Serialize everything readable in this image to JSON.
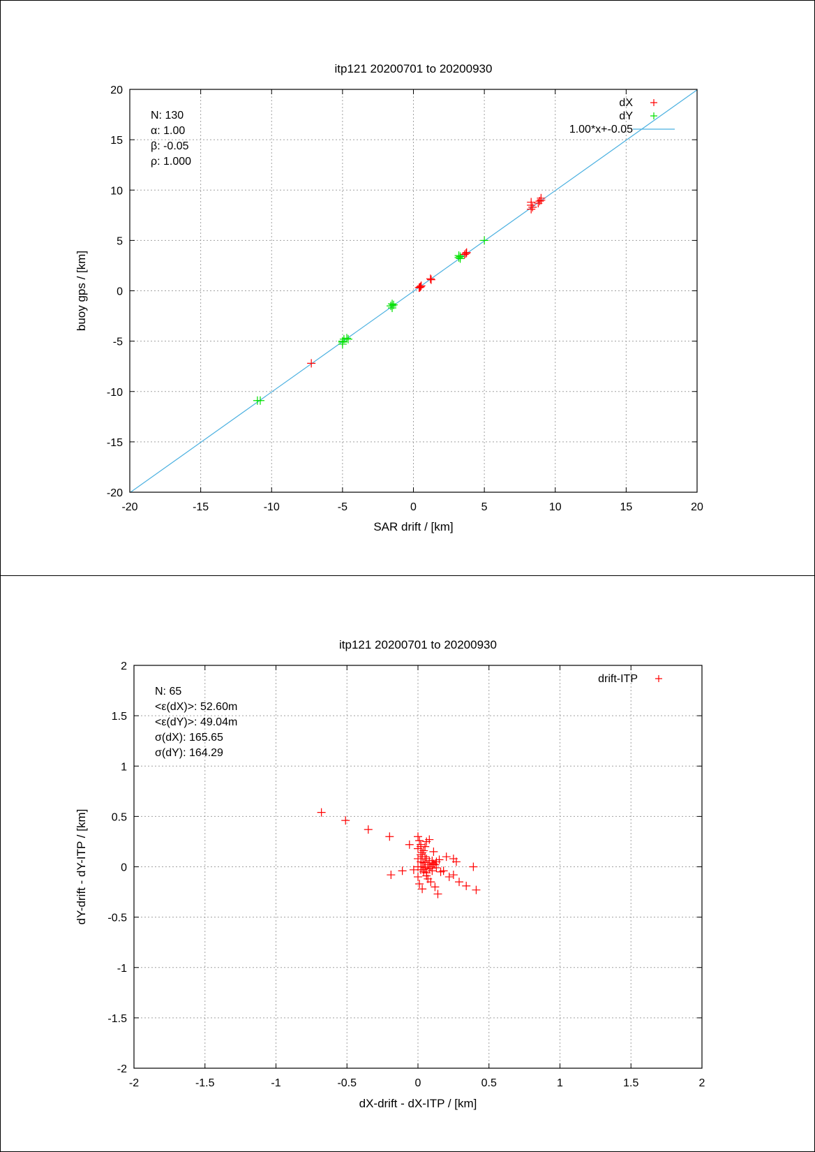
{
  "chart_data": [
    {
      "type": "scatter",
      "title": "itp121 20200701 to 20200930",
      "xlabel": "SAR drift / [km]",
      "ylabel": "buoy gps / [km]",
      "xlim": [
        -20,
        20
      ],
      "ylim": [
        -20,
        20
      ],
      "xticks": [
        -20,
        -15,
        -10,
        -5,
        0,
        5,
        10,
        15,
        20
      ],
      "yticks": [
        -20,
        -15,
        -10,
        -5,
        0,
        5,
        10,
        15,
        20
      ],
      "grid": true,
      "legend_position": "top-right",
      "stats": [
        "N: 130",
        "α: 1.00",
        "β: -0.05",
        "ρ: 1.000"
      ],
      "series": [
        {
          "name": "dX",
          "marker": "plus",
          "color": "#ff0000",
          "points": [
            [
              -7.2,
              -7.2
            ],
            [
              0.5,
              0.4
            ],
            [
              0.4,
              0.3
            ],
            [
              0.55,
              0.5
            ],
            [
              0.45,
              0.35
            ],
            [
              1.2,
              1.2
            ],
            [
              1.25,
              1.1
            ],
            [
              3.7,
              3.7
            ],
            [
              3.6,
              3.6
            ],
            [
              3.75,
              3.8
            ],
            [
              8.3,
              8.1
            ],
            [
              8.3,
              8.5
            ],
            [
              8.3,
              8.8
            ],
            [
              8.4,
              8.3
            ],
            [
              8.9,
              8.9
            ],
            [
              9.0,
              9.2
            ],
            [
              8.8,
              8.7
            ],
            [
              9.0,
              9.0
            ]
          ]
        },
        {
          "name": "dY",
          "marker": "plus",
          "color": "#00e000",
          "points": [
            [
              -11.0,
              -10.9
            ],
            [
              -10.8,
              -10.9
            ],
            [
              -5.0,
              -5.3
            ],
            [
              -5.0,
              -5.0
            ],
            [
              -4.9,
              -4.8
            ],
            [
              -4.7,
              -4.7
            ],
            [
              -4.6,
              -4.8
            ],
            [
              -5.0,
              -5.1
            ],
            [
              -1.5,
              -1.3
            ],
            [
              -1.5,
              -1.5
            ],
            [
              -1.5,
              -1.7
            ],
            [
              -1.4,
              -1.4
            ],
            [
              -1.6,
              -1.5
            ],
            [
              3.2,
              3.3
            ],
            [
              3.2,
              3.5
            ],
            [
              3.3,
              3.4
            ],
            [
              3.3,
              3.2
            ],
            [
              5.0,
              5.0
            ]
          ]
        }
      ],
      "fit": {
        "label": "1.00*x+-0.05",
        "slope": 1.0,
        "intercept": -0.05,
        "color": "#4ab0e0"
      }
    },
    {
      "type": "scatter",
      "title": "itp121 20200701 to 20200930",
      "xlabel": "dX-drift - dX-ITP / [km]",
      "ylabel": "dY-drift - dY-ITP / [km]",
      "xlim": [
        -2,
        2
      ],
      "ylim": [
        -2,
        2
      ],
      "xticks": [
        -2,
        -1.5,
        -1,
        -0.5,
        0,
        0.5,
        1,
        1.5,
        2
      ],
      "yticks": [
        -2,
        -1.5,
        -1,
        -0.5,
        0,
        0.5,
        1,
        1.5,
        2
      ],
      "grid": true,
      "legend_position": "top-right",
      "stats": [
        "N: 65",
        "<ε(dX)>:  52.60m",
        "<ε(dY)>: 49.04m",
        "σ(dX):  165.65",
        "σ(dY):  164.29"
      ],
      "series": [
        {
          "name": "drift-ITP",
          "marker": "plus",
          "color": "#ff0000",
          "points": [
            [
              -0.68,
              0.54
            ],
            [
              -0.51,
              0.46
            ],
            [
              -0.35,
              0.37
            ],
            [
              -0.2,
              0.3
            ],
            [
              -0.19,
              -0.08
            ],
            [
              -0.11,
              -0.04
            ],
            [
              -0.06,
              0.22
            ],
            [
              -0.03,
              -0.03
            ],
            [
              0.0,
              0.3
            ],
            [
              0.0,
              0.18
            ],
            [
              0.0,
              0.0
            ],
            [
              0.0,
              -0.1
            ],
            [
              0.01,
              -0.17
            ],
            [
              0.01,
              0.26
            ],
            [
              0.02,
              0.2
            ],
            [
              0.02,
              0.12
            ],
            [
              0.02,
              0.05
            ],
            [
              0.02,
              -0.03
            ],
            [
              0.03,
              0.1
            ],
            [
              0.03,
              0.0
            ],
            [
              0.03,
              -0.22
            ],
            [
              0.04,
              0.16
            ],
            [
              0.04,
              0.04
            ],
            [
              0.04,
              -0.05
            ],
            [
              0.05,
              0.1
            ],
            [
              0.05,
              -0.01
            ],
            [
              0.05,
              0.2
            ],
            [
              0.06,
              0.08
            ],
            [
              0.06,
              -0.06
            ],
            [
              0.06,
              0.25
            ],
            [
              0.07,
              0.02
            ],
            [
              0.07,
              -0.12
            ],
            [
              0.08,
              0.27
            ],
            [
              0.08,
              -0.02
            ],
            [
              0.09,
              -0.15
            ],
            [
              0.1,
              0.06
            ],
            [
              0.1,
              -0.04
            ],
            [
              0.11,
              0.15
            ],
            [
              0.11,
              0.03
            ],
            [
              0.12,
              0.02
            ],
            [
              0.12,
              -0.2
            ],
            [
              0.13,
              0.05
            ],
            [
              0.14,
              -0.27
            ],
            [
              0.15,
              0.07
            ],
            [
              0.16,
              -0.05
            ],
            [
              0.18,
              -0.04
            ],
            [
              0.2,
              0.1
            ],
            [
              0.22,
              -0.1
            ],
            [
              0.25,
              -0.08
            ],
            [
              0.25,
              0.08
            ],
            [
              0.27,
              0.05
            ],
            [
              0.29,
              -0.15
            ],
            [
              0.34,
              -0.19
            ],
            [
              0.39,
              0.0
            ],
            [
              0.41,
              -0.23
            ],
            [
              0.03,
              0.14
            ],
            [
              0.05,
              0.04
            ],
            [
              0.0,
              0.08
            ],
            [
              0.09,
              0.0
            ],
            [
              0.13,
              -0.01
            ],
            [
              0.02,
              0.22
            ],
            [
              0.04,
              -0.03
            ],
            [
              0.08,
              0.06
            ],
            [
              0.1,
              0.04
            ],
            [
              0.06,
              -0.09
            ]
          ]
        }
      ]
    }
  ]
}
